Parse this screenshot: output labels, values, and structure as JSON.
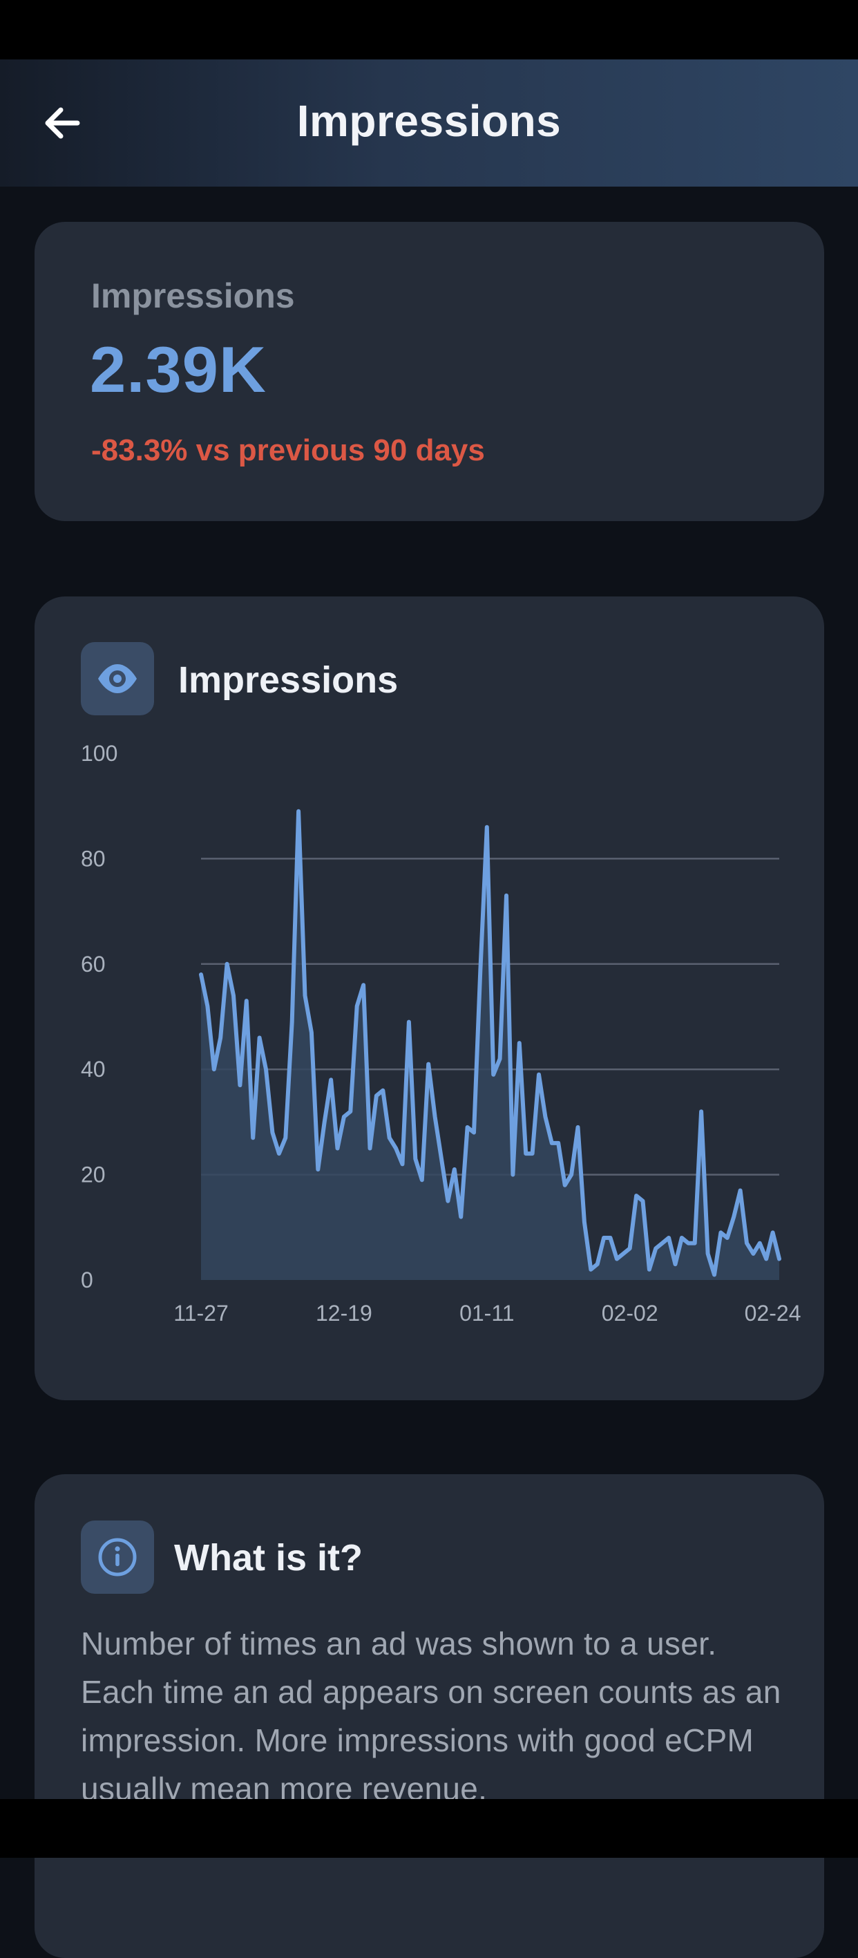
{
  "header": {
    "title": "Impressions"
  },
  "summary": {
    "label": "Impressions",
    "value": "2.39K",
    "change": "-83.3% vs previous 90 days"
  },
  "chart_card": {
    "title": "Impressions",
    "icon": "eye-icon"
  },
  "chart_data": {
    "type": "area",
    "title": "Impressions",
    "ylim": [
      0,
      100
    ],
    "y_ticks": [
      0,
      20,
      40,
      60,
      80,
      100
    ],
    "x_tick_labels": [
      "11-27",
      "12-19",
      "01-11",
      "02-02",
      "02-24"
    ],
    "x_tick_positions": [
      0,
      22,
      44,
      66,
      88
    ],
    "grid": true,
    "color": "#6ea0e0",
    "fill": "#34465e",
    "values": [
      58,
      52,
      40,
      46,
      60,
      54,
      37,
      53,
      27,
      46,
      40,
      28,
      24,
      27,
      49,
      89,
      54,
      47,
      21,
      30,
      38,
      25,
      31,
      32,
      52,
      56,
      25,
      35,
      36,
      27,
      25,
      22,
      49,
      23,
      19,
      41,
      31,
      23,
      15,
      21,
      12,
      29,
      28,
      59,
      86,
      39,
      42,
      73,
      20,
      45,
      24,
      24,
      39,
      31,
      26,
      26,
      18,
      20,
      29,
      11,
      2,
      3,
      8,
      8,
      4,
      5,
      6,
      16,
      15,
      2,
      6,
      7,
      8,
      3,
      8,
      7,
      7,
      32,
      5,
      1,
      9,
      8,
      12,
      17,
      7,
      5,
      7,
      4,
      9,
      4
    ]
  },
  "info": {
    "title": "What is it?",
    "icon": "info-icon",
    "text": "Number of times an ad was shown to a user. Each time an ad appears on screen counts as an impression. More impressions with good eCPM usually mean more revenue."
  }
}
